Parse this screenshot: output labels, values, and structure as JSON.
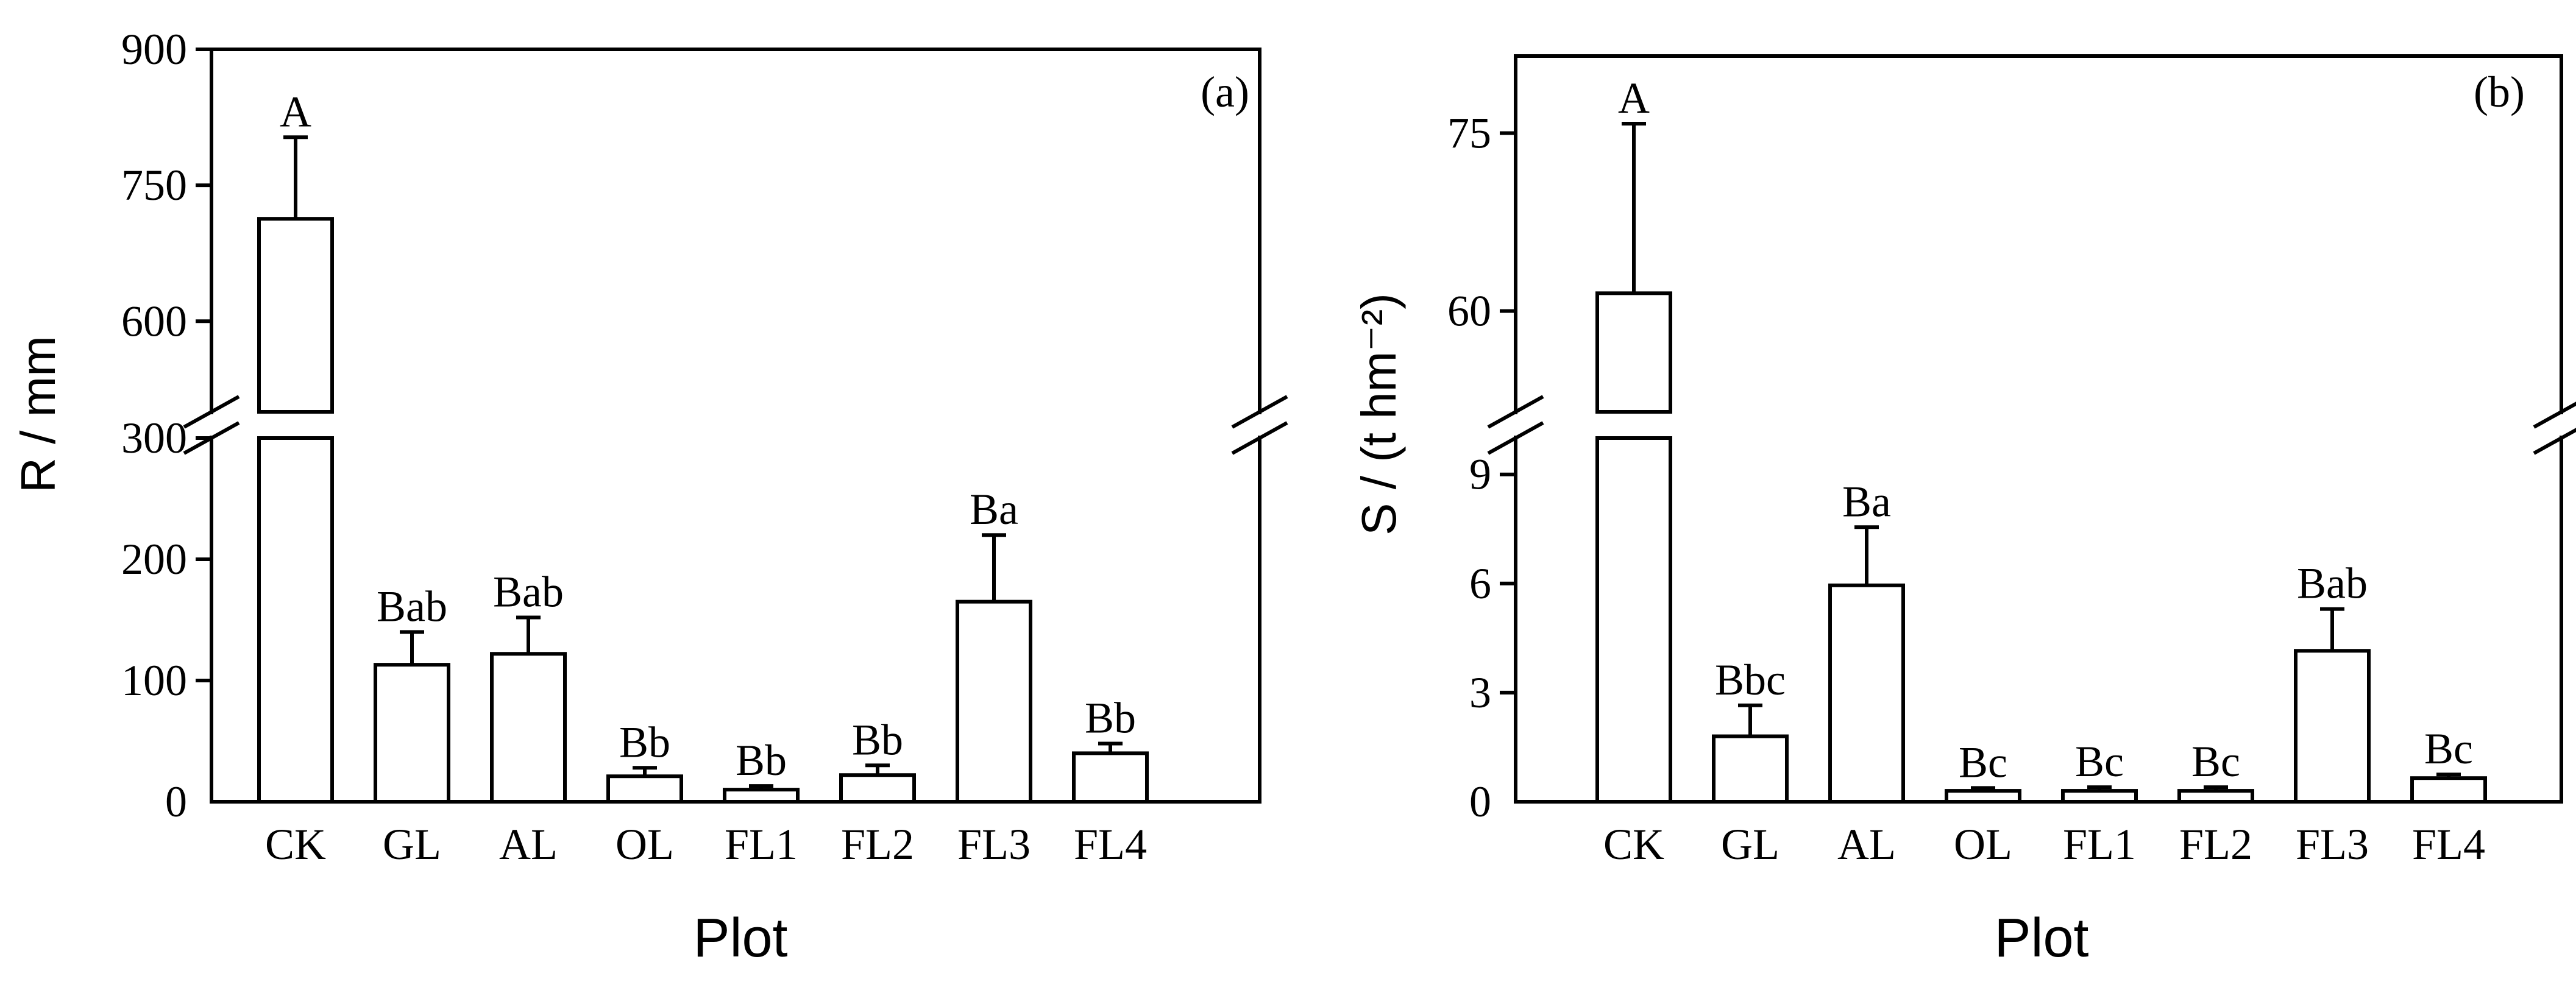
{
  "chart_data": [
    {
      "type": "bar",
      "panel_label": "(a)",
      "xlabel": "Plot",
      "ylabel": "R / mm",
      "categories": [
        "CK",
        "GL",
        "AL",
        "OL",
        "FL1",
        "FL2",
        "FL3",
        "FL4"
      ],
      "values": [
        713,
        113,
        122,
        21,
        10,
        22,
        165,
        40
      ],
      "errors": [
        90,
        27,
        30,
        7,
        3,
        8,
        55,
        8
      ],
      "significance": [
        "A",
        "Bab",
        "Bab",
        "Bb",
        "Bb",
        "Bb",
        "Ba",
        "Bb"
      ],
      "y_axis": {
        "broken": true,
        "lower_range": [
          0,
          300
        ],
        "lower_ticks": [
          "0",
          "100",
          "200",
          "300"
        ],
        "upper_range": [
          500,
          900
        ],
        "upper_ticks": [
          "600",
          "750",
          "900"
        ]
      },
      "grid": false,
      "legend": "none"
    },
    {
      "type": "bar",
      "panel_label": "(b)",
      "xlabel": "Plot",
      "ylabel": "S / (t hm⁻²)",
      "categories": [
        "CK",
        "GL",
        "AL",
        "OL",
        "FL1",
        "FL2",
        "FL3",
        "FL4"
      ],
      "values": [
        61.5,
        1.8,
        5.95,
        0.3,
        0.3,
        0.3,
        4.15,
        0.65
      ],
      "errors": [
        14.3,
        0.85,
        1.6,
        0.08,
        0.1,
        0.1,
        1.15,
        0.1
      ],
      "significance": [
        "A",
        "Bbc",
        "Ba",
        "Bc",
        "Bc",
        "Bc",
        "Bab",
        "Bc"
      ],
      "y_axis": {
        "broken": true,
        "lower_range": [
          0,
          10
        ],
        "lower_ticks": [
          "0",
          "3",
          "6",
          "9"
        ],
        "upper_range": [
          51.5,
          81.5
        ],
        "upper_ticks": [
          "60",
          "75"
        ]
      },
      "grid": false,
      "legend": "none"
    }
  ]
}
